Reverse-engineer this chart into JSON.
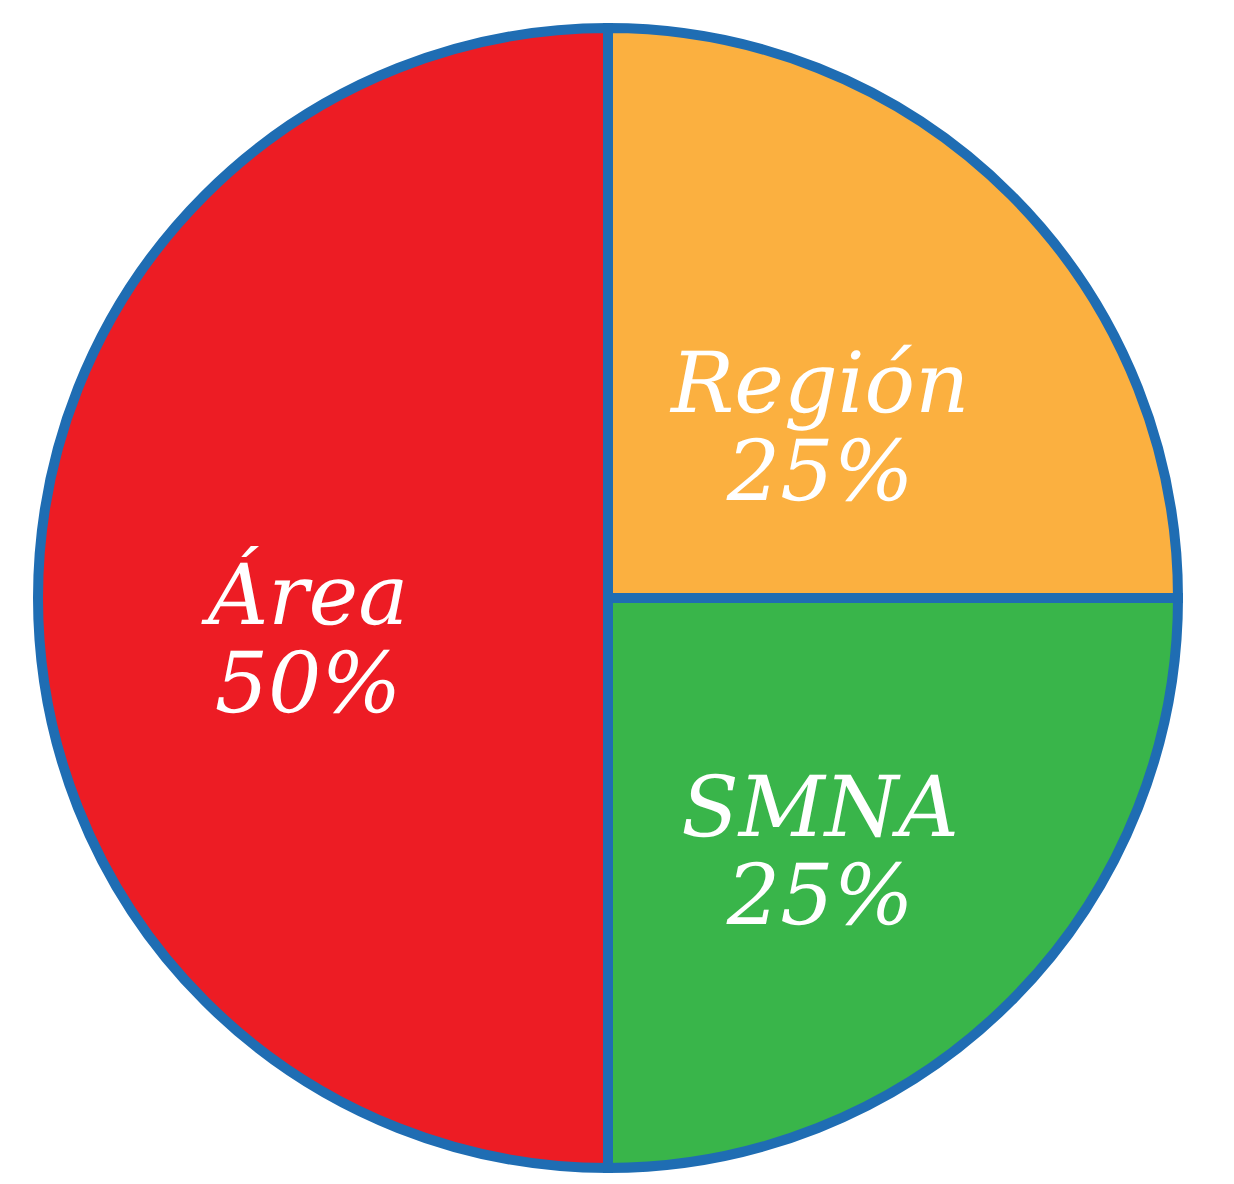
{
  "chart_data": {
    "type": "pie",
    "categories": [
      "Región",
      "SMNA",
      "Área"
    ],
    "values": [
      25,
      25,
      50
    ],
    "value_labels": [
      "25%",
      "25%",
      "50%"
    ],
    "colors": [
      "#fbb040",
      "#39b54a",
      "#ed1c24"
    ],
    "legend": false
  }
}
